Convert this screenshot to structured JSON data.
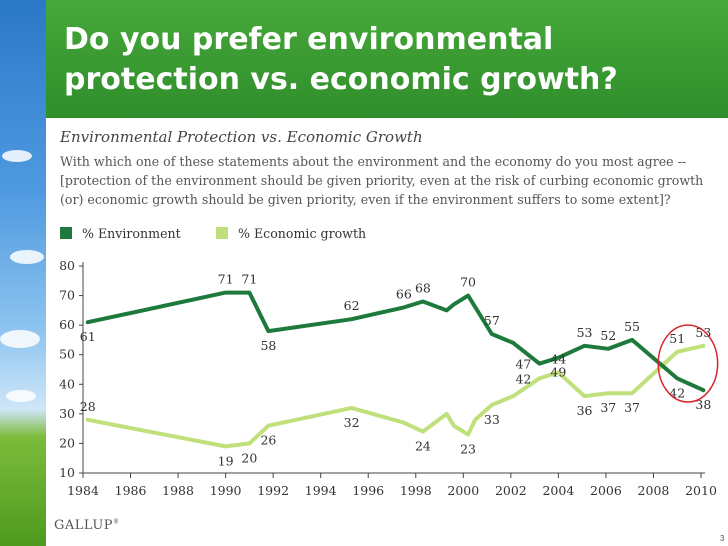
{
  "slide": {
    "title": "Do you prefer environmental protection vs. economic growth?",
    "logo": "GALLUP",
    "logo_mark": "®",
    "page_number": "3"
  },
  "chart_data": {
    "type": "line",
    "title": "Environmental Protection vs. Economic Growth",
    "subtitle": "With which one of these statements about the environment and the economy do you most agree -- [protection of the environment should be given priority, even at the risk of curbing economic growth (or) economic growth should be given priority, even if the environment suffers to some extent]?",
    "xlabel": "",
    "ylabel": "",
    "xlim": [
      1984,
      2010
    ],
    "ylim": [
      10,
      80
    ],
    "x_ticks": [
      "1984",
      "1986",
      "1988",
      "1990",
      "1992",
      "1994",
      "1996",
      "1998",
      "2000",
      "2002",
      "2004",
      "2006",
      "2008",
      "2010"
    ],
    "y_ticks": [
      "10",
      "20",
      "30",
      "40",
      "50",
      "60",
      "70",
      "80"
    ],
    "grid": false,
    "series": [
      {
        "name": "% Environment",
        "color": "#1d7a3c",
        "points": [
          [
            1984.2,
            61
          ],
          [
            1990.0,
            71
          ],
          [
            1991.0,
            71
          ],
          [
            1991.8,
            58
          ],
          [
            1995.3,
            62
          ],
          [
            1997.5,
            66
          ],
          [
            1998.3,
            68
          ],
          [
            1999.3,
            65
          ],
          [
            1999.6,
            67
          ],
          [
            2000.2,
            70
          ],
          [
            2001.2,
            57
          ],
          [
            2002.1,
            54
          ],
          [
            2003.2,
            47
          ],
          [
            2004.0,
            49
          ],
          [
            2005.1,
            53
          ],
          [
            2006.1,
            52
          ],
          [
            2007.1,
            55
          ],
          [
            2009.0,
            42
          ],
          [
            2010.1,
            38
          ]
        ]
      },
      {
        "name": "% Economic growth",
        "color": "#bfe07a",
        "points": [
          [
            1984.2,
            28
          ],
          [
            1990.0,
            19
          ],
          [
            1991.0,
            20
          ],
          [
            1991.8,
            26
          ],
          [
            1995.3,
            32
          ],
          [
            1997.5,
            27
          ],
          [
            1998.3,
            24
          ],
          [
            1999.3,
            30
          ],
          [
            1999.6,
            26
          ],
          [
            2000.2,
            23
          ],
          [
            2000.5,
            28
          ],
          [
            2001.2,
            33
          ],
          [
            2002.1,
            36
          ],
          [
            2003.2,
            42
          ],
          [
            2004.0,
            44
          ],
          [
            2005.1,
            36
          ],
          [
            2006.1,
            37
          ],
          [
            2007.1,
            37
          ],
          [
            2009.0,
            51
          ],
          [
            2010.1,
            53
          ]
        ]
      }
    ],
    "annotations": [
      {
        "text": "61",
        "series": 0,
        "x": 1984.2,
        "y": 61,
        "pos": "below"
      },
      {
        "text": "71",
        "series": 0,
        "x": 1990.0,
        "y": 71,
        "pos": "above"
      },
      {
        "text": "71",
        "series": 0,
        "x": 1991.0,
        "y": 71,
        "pos": "above"
      },
      {
        "text": "58",
        "series": 0,
        "x": 1991.8,
        "y": 58,
        "pos": "below"
      },
      {
        "text": "62",
        "series": 0,
        "x": 1995.3,
        "y": 62,
        "pos": "above"
      },
      {
        "text": "66",
        "series": 0,
        "x": 1997.5,
        "y": 66,
        "pos": "above"
      },
      {
        "text": "68",
        "series": 0,
        "x": 1998.3,
        "y": 68,
        "pos": "above"
      },
      {
        "text": "70",
        "series": 0,
        "x": 2000.2,
        "y": 70,
        "pos": "above"
      },
      {
        "text": "57",
        "series": 0,
        "x": 2001.2,
        "y": 57,
        "pos": "above"
      },
      {
        "text": "47",
        "series": 0,
        "x": 2003.2,
        "y": 47,
        "pos": "left"
      },
      {
        "text": "49",
        "series": 0,
        "x": 2004.0,
        "y": 49,
        "pos": "below"
      },
      {
        "text": "53",
        "series": 0,
        "x": 2005.1,
        "y": 53,
        "pos": "above"
      },
      {
        "text": "52",
        "series": 0,
        "x": 2006.1,
        "y": 52,
        "pos": "above"
      },
      {
        "text": "55",
        "series": 0,
        "x": 2007.1,
        "y": 55,
        "pos": "above"
      },
      {
        "text": "42",
        "series": 0,
        "x": 2009.0,
        "y": 42,
        "pos": "below"
      },
      {
        "text": "38",
        "series": 0,
        "x": 2010.1,
        "y": 38,
        "pos": "below"
      },
      {
        "text": "28",
        "series": 1,
        "x": 1984.2,
        "y": 28,
        "pos": "above"
      },
      {
        "text": "19",
        "series": 1,
        "x": 1990.0,
        "y": 19,
        "pos": "below"
      },
      {
        "text": "20",
        "series": 1,
        "x": 1991.0,
        "y": 20,
        "pos": "below"
      },
      {
        "text": "26",
        "series": 1,
        "x": 1991.8,
        "y": 26,
        "pos": "below"
      },
      {
        "text": "32",
        "series": 1,
        "x": 1995.3,
        "y": 32,
        "pos": "below"
      },
      {
        "text": "24",
        "series": 1,
        "x": 1998.3,
        "y": 24,
        "pos": "below"
      },
      {
        "text": "23",
        "series": 1,
        "x": 2000.2,
        "y": 23,
        "pos": "below"
      },
      {
        "text": "33",
        "series": 1,
        "x": 2001.2,
        "y": 33,
        "pos": "below"
      },
      {
        "text": "42",
        "series": 1,
        "x": 2003.2,
        "y": 42,
        "pos": "left"
      },
      {
        "text": "44",
        "series": 1,
        "x": 2004.0,
        "y": 44,
        "pos": "above"
      },
      {
        "text": "36",
        "series": 1,
        "x": 2005.1,
        "y": 36,
        "pos": "below"
      },
      {
        "text": "37",
        "series": 1,
        "x": 2006.1,
        "y": 37,
        "pos": "below"
      },
      {
        "text": "37",
        "series": 1,
        "x": 2007.1,
        "y": 37,
        "pos": "below"
      },
      {
        "text": "51",
        "series": 1,
        "x": 2009.0,
        "y": 51,
        "pos": "above"
      },
      {
        "text": "53",
        "series": 1,
        "x": 2010.1,
        "y": 53,
        "pos": "above"
      }
    ],
    "highlight": {
      "shape": "ellipse",
      "color": "#d8262e",
      "x_range": [
        2008.2,
        2010.7
      ],
      "y_range": [
        34,
        60
      ]
    }
  }
}
